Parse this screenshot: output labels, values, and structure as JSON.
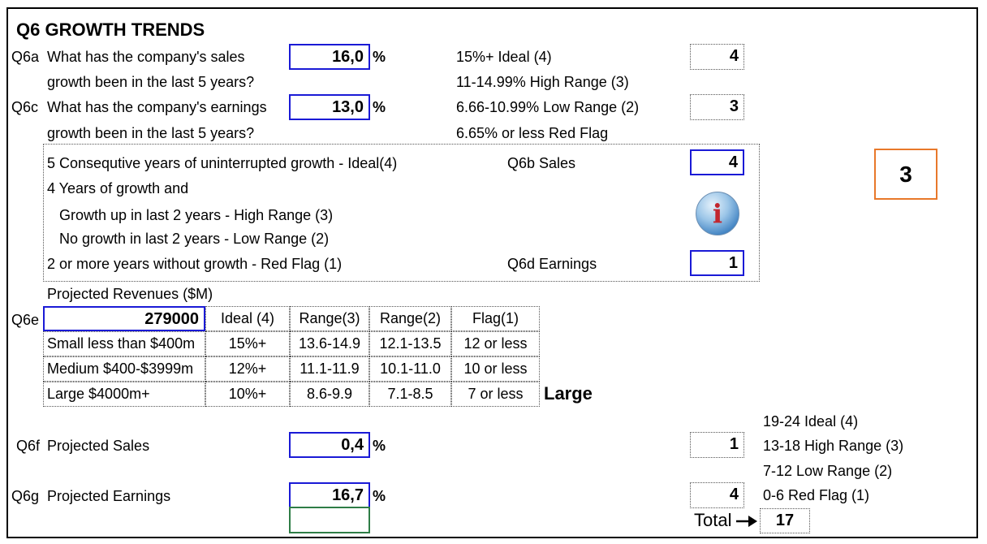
{
  "section_title": "Q6 GROWTH TRENDS",
  "q6a": {
    "code": "Q6a",
    "question_line1": "What has the company's sales",
    "question_line2": "growth been in the last 5 years?",
    "value": "16,0",
    "unit": "%",
    "score": "4"
  },
  "q6c": {
    "code": "Q6c",
    "question_line1": "What has the company's earnings",
    "question_line2": "growth been in the last 5 years?",
    "value": "13,0",
    "unit": "%",
    "score": "3"
  },
  "growth_ranges": [
    "15%+ Ideal (4)",
    "11-14.99% High Range (3)",
    "6.66-10.99% Low Range (2)",
    "6.65% or less Red Flag"
  ],
  "consecutive": {
    "line1": "5 Consequtive years of uninterrupted growth - Ideal(4)",
    "line2": "4 Years of growth and",
    "line3": "Growth up in last 2 years - High Range (3)",
    "line4": "No growth in last 2 years - Low Range (2)",
    "line5": "2 or more years without growth - Red Flag (1)",
    "q6b_label": "Q6b  Sales",
    "q6b_value": "4",
    "q6d_label": "Q6d  Earnings",
    "q6d_value": "1",
    "info_icon": "info-icon"
  },
  "overall_score": "3",
  "q6e": {
    "caption": "Projected Revenues ($M)",
    "code": "Q6e",
    "value": "279000",
    "headers": [
      "Ideal (4)",
      "Range(3)",
      "Range(2)",
      "Flag(1)"
    ],
    "rows": [
      {
        "label": "Small less than $400m",
        "cells": [
          "15%+",
          "13.6-14.9",
          "12.1-13.5",
          "12 or less"
        ]
      },
      {
        "label": "Medium $400-$3999m",
        "cells": [
          "12%+",
          "11.1-11.9",
          "10.1-11.0",
          "10 or less"
        ]
      },
      {
        "label": "Large $4000m+",
        "cells": [
          "10%+",
          "8.6-9.9",
          "7.1-8.5",
          "7 or less"
        ]
      }
    ],
    "size_result": "Large"
  },
  "q6f": {
    "code": "Q6f",
    "label": "Projected Sales",
    "value": "0,4",
    "unit": "%",
    "score": "1"
  },
  "q6g": {
    "code": "Q6g",
    "label": "Projected Earnings",
    "value": "16,7",
    "unit": "%",
    "score": "4"
  },
  "total_ranges": [
    "19-24 Ideal (4)",
    "13-18 High Range (3)",
    "7-12 Low Range (2)",
    "0-6 Red Flag (1)"
  ],
  "total": {
    "label": "Total",
    "value": "17"
  },
  "colors": {
    "input_border": "#1a1ad6",
    "score_border": "#e8782a",
    "selected_cell_border": "#2e7d46"
  }
}
